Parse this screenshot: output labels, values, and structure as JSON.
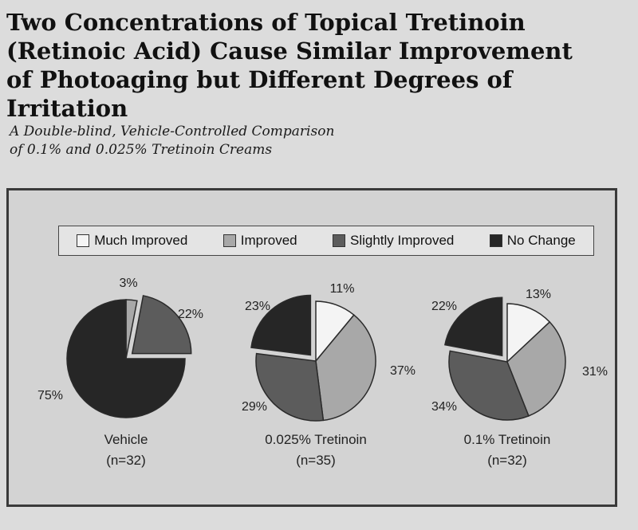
{
  "title": "Two Concentrations of Topical Tretinoin\n(Retinoic Acid) Cause Similar Improvement\nof Photoaging but Different Degrees of Irritation",
  "subtitle": "A Double-blind, Vehicle-Controlled Comparison\nof 0.1% and 0.025% Tretinoin Creams",
  "legend": [
    {
      "label": "Much Improved",
      "color": "#f4f4f4"
    },
    {
      "label": "Improved",
      "color": "#a8a8a8"
    },
    {
      "label": "Slightly Improved",
      "color": "#5c5c5c"
    },
    {
      "label": "No Change",
      "color": "#262626"
    }
  ],
  "chart_data": {
    "type": "pie",
    "categories": [
      "Much Improved",
      "Improved",
      "Slightly Improved",
      "No Change"
    ],
    "charts": [
      {
        "name": "Vehicle",
        "n": "(n=32)",
        "slices": [
          {
            "category": "Improved",
            "value": 3,
            "label": "3%"
          },
          {
            "category": "Slightly Improved",
            "value": 22,
            "label": "22%"
          },
          {
            "category": "No Change",
            "value": 75,
            "label": "75%"
          }
        ]
      },
      {
        "name": "0.025% Tretinoin",
        "n": "(n=35)",
        "slices": [
          {
            "category": "Much Improved",
            "value": 11,
            "label": "11%"
          },
          {
            "category": "Improved",
            "value": 37,
            "label": "37%"
          },
          {
            "category": "Slightly Improved",
            "value": 29,
            "label": "29%"
          },
          {
            "category": "No Change",
            "value": 23,
            "label": "23%"
          }
        ]
      },
      {
        "name": "0.1% Tretinoin",
        "n": "(n=32)",
        "slices": [
          {
            "category": "Much Improved",
            "value": 13,
            "label": "13%"
          },
          {
            "category": "Improved",
            "value": 31,
            "label": "31%"
          },
          {
            "category": "Slightly Improved",
            "value": 34,
            "label": "34%"
          },
          {
            "category": "No Change",
            "value": 22,
            "label": "22%"
          }
        ]
      }
    ]
  }
}
